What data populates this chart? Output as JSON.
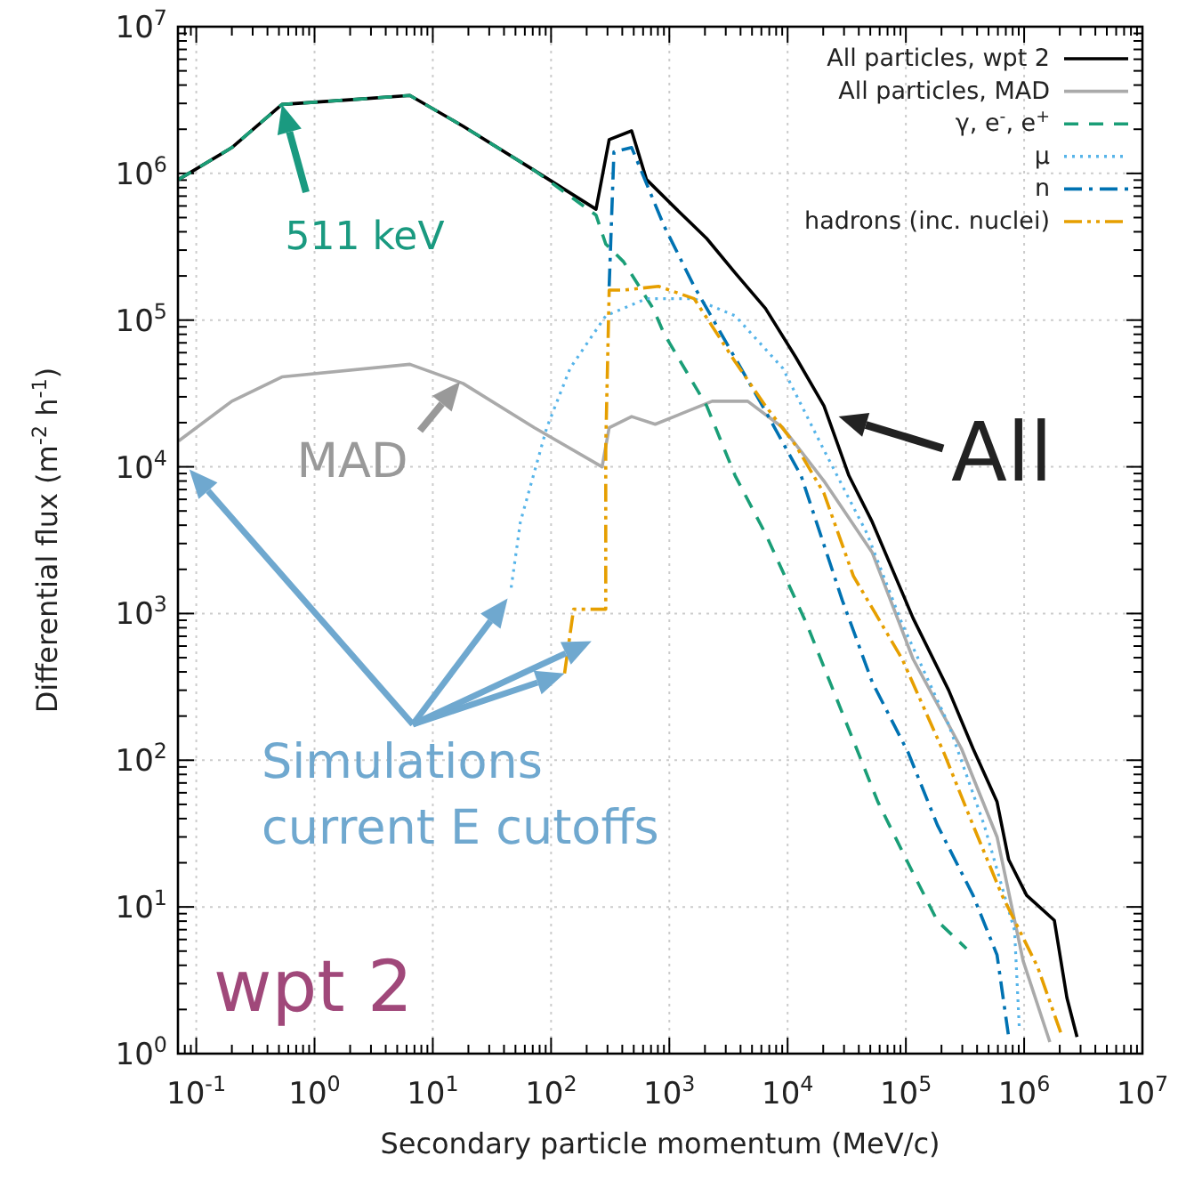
{
  "chart_data": {
    "type": "line",
    "xlabel": "Secondary particle momentum (MeV/c)",
    "ylabel": "Differential flux (m$^{-2}$ h$^{-1}$)",
    "log": "xy",
    "grid": true,
    "legend": "top right",
    "xlim": [
      0.07,
      10000000
    ],
    "ylim": [
      1,
      10000000
    ],
    "xticks": [
      {
        "value": 0.1,
        "label": "10$^{-1}$"
      },
      {
        "value": 1,
        "label": "10$^{0}$"
      },
      {
        "value": 10,
        "label": "10$^{1}$"
      },
      {
        "value": 100,
        "label": "10$^{2}$"
      },
      {
        "value": 1000,
        "label": "10$^{3}$"
      },
      {
        "value": 10000,
        "label": "10$^{4}$"
      },
      {
        "value": 100000,
        "label": "10$^{5}$"
      },
      {
        "value": 1000000,
        "label": "10$^{6}$"
      },
      {
        "value": 10000000,
        "label": "10$^{7}$"
      }
    ],
    "yticks": [
      {
        "value": 1,
        "label": "10$^{0}$"
      },
      {
        "value": 10,
        "label": "10$^{1}$"
      },
      {
        "value": 100,
        "label": "10$^{2}$"
      },
      {
        "value": 1000,
        "label": "10$^{3}$"
      },
      {
        "value": 10000,
        "label": "10$^{4}$"
      },
      {
        "value": 100000,
        "label": "10$^{5}$"
      },
      {
        "value": 1000000,
        "label": "10$^{6}$"
      },
      {
        "value": 10000000,
        "label": "10$^{7}$"
      }
    ],
    "series": [
      {
        "name": "All particles, wpt 2",
        "color": "#000000",
        "line_style": "solid",
        "x": [
          0.071,
          0.2,
          0.53,
          2.25,
          6.4,
          18,
          72,
          240,
          310,
          480,
          640,
          1150,
          2070,
          3600,
          6500,
          11700,
          20300,
          33000,
          52000,
          115000,
          230000,
          370000,
          590000,
          740000,
          1050000,
          1800000,
          2300000,
          2800000
        ],
        "values": [
          910000,
          1500000,
          2950000,
          3200000,
          3400000,
          2100000,
          1050000,
          570000,
          1700000,
          1950000,
          910000,
          570000,
          360000,
          210000,
          120000,
          56000,
          26000,
          8700,
          4200,
          930,
          300,
          120,
          52,
          21,
          12,
          8.1,
          2.4,
          1.3
        ]
      },
      {
        "name": "All particles, MAD",
        "color": "#aaaaaa",
        "line_style": "solid",
        "x": [
          0.071,
          0.2,
          0.53,
          6.4,
          18,
          72,
          270,
          310,
          480,
          760,
          2300,
          4600,
          9100,
          20300,
          52000,
          115000,
          295000,
          590000,
          980000,
          1650000
        ],
        "values": [
          15000,
          28000,
          41000,
          50000,
          37000,
          18500,
          10000,
          18500,
          22000,
          19500,
          28000,
          28000,
          18500,
          8000,
          2600,
          490,
          120,
          30,
          4.3,
          1.2
        ]
      },
      {
        "name": "γ, e$^{-}$, e$^{+}$",
        "color": "#1a9e77",
        "line_style": "dashed",
        "x": [
          0.071,
          0.2,
          0.53,
          2.25,
          6.4,
          18,
          72,
          240,
          290,
          410,
          730,
          900,
          2070,
          3600,
          6500,
          14500,
          29000,
          58000,
          115000,
          185000,
          325000
        ],
        "values": [
          910000,
          1500000,
          2950000,
          3200000,
          3400000,
          2100000,
          1050000,
          520000,
          330000,
          250000,
          120000,
          81000,
          26000,
          8700,
          3500,
          850,
          210,
          52,
          17,
          8,
          5.2
        ]
      },
      {
        "name": "μ",
        "color": "#56b4e9",
        "line_style": "dotted",
        "x": [
          46,
          55,
          92,
          145,
          290,
          640,
          1620,
          3600,
          9100,
          20300,
          47000,
          93000,
          230000,
          460000,
          830000,
          910000
        ],
        "values": [
          1500,
          4200,
          18500,
          47000,
          107000,
          140000,
          140000,
          107000,
          47000,
          13000,
          3500,
          850,
          175,
          36,
          6.9,
          1.5
        ]
      },
      {
        "name": "n",
        "color": "#0072b2",
        "line_style": "dashdot",
        "x": [
          310,
          340,
          480,
          620,
          900,
          1620,
          3200,
          6500,
          13000,
          29000,
          52000,
          105000,
          185000,
          370000,
          590000,
          740000
        ],
        "values": [
          170000,
          1400000,
          1500000,
          910000,
          440000,
          170000,
          65000,
          24000,
          8700,
          1230,
          340,
          112,
          36,
          12,
          4.7,
          1.3
        ]
      },
      {
        "name": "hadrons (inc. nuclei)",
        "color": "#e69f00",
        "line_style": "dashdotdot",
        "x": [
          130,
          155,
          290,
          290,
          310,
          410,
          810,
          1620,
          2300,
          3600,
          6500,
          11700,
          20300,
          36000,
          93000,
          210000,
          370000,
          650000,
          1300000,
          2100000
        ],
        "values": [
          390,
          1070,
          1070,
          14000,
          160000,
          160000,
          170000,
          140000,
          91000,
          52000,
          26000,
          14000,
          6600,
          1800,
          490,
          112,
          36,
          12,
          3.9,
          1.3
        ]
      }
    ],
    "annotations": [
      {
        "text": "511 keV",
        "x": 0.53,
        "y": 2950000
      },
      {
        "text": "MAD",
        "x": 17,
        "y": 38000
      },
      {
        "text": "All",
        "x": 27000,
        "y": 22000
      },
      {
        "text": "Simulations\ncurrent E cutoffs",
        "x": 130,
        "y": 390
      },
      "wpt 2"
    ]
  }
}
